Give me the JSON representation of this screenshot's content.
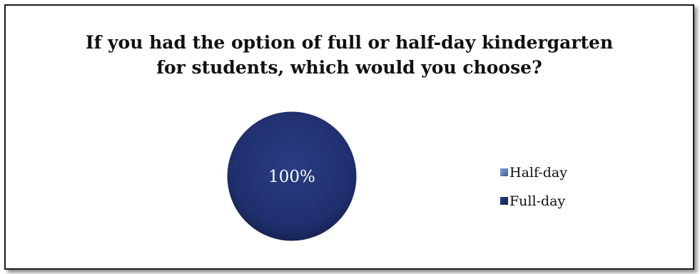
{
  "chart_data": {
    "type": "pie",
    "title_lines": [
      "If you had the option of full or half-day kindergarten",
      "for students, which would you choose?"
    ],
    "categories": [
      "Half-day",
      "Full-day"
    ],
    "values": [
      0,
      100
    ],
    "data_labels": [
      "",
      "100%"
    ],
    "colors": [
      "#4f79b8",
      "#1f2f6e"
    ],
    "legend_position": "right"
  }
}
